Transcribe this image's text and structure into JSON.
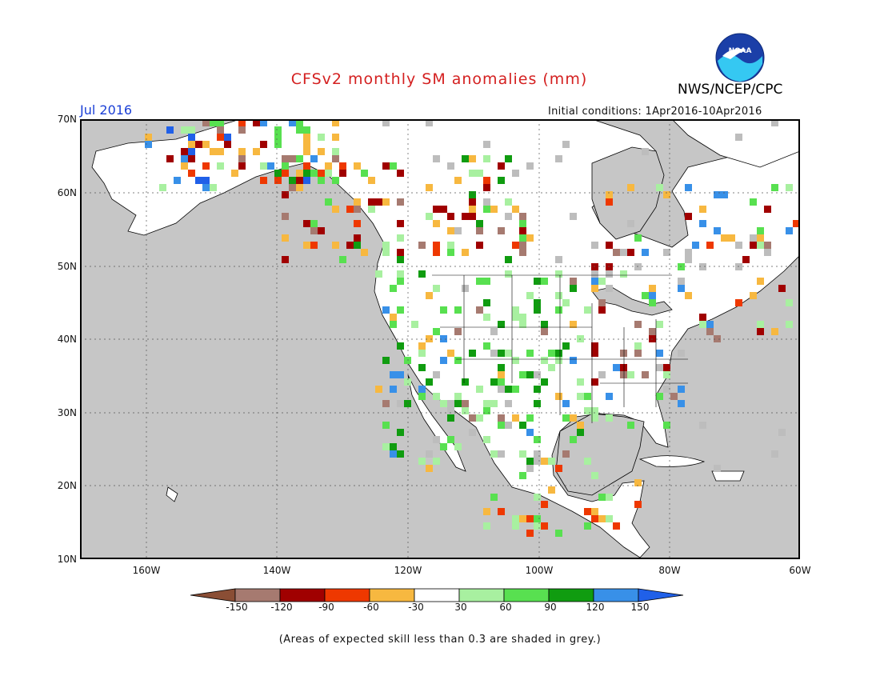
{
  "title": "CFSv2 monthly SM anomalies (mm)",
  "agency": "NWS/NCEP/CPC",
  "logo_text": "NOAA",
  "month_label": "Jul 2016",
  "initial_conditions": "Initial conditions: 1Apr2016-10Apr2016",
  "lat_labels": [
    "70N",
    "60N",
    "50N",
    "40N",
    "30N",
    "20N",
    "10N"
  ],
  "lon_labels": [
    "160W",
    "140W",
    "120W",
    "100W",
    "80W",
    "60W"
  ],
  "colorbar": {
    "labels": [
      "-150",
      "-120",
      "-90",
      "-60",
      "-30",
      "30",
      "60",
      "90",
      "120",
      "150"
    ],
    "colors": [
      "#8a4e35",
      "#a67a70",
      "#a00000",
      "#ee3800",
      "#f7b840",
      "#ffffff",
      "#a8f0a0",
      "#58e050",
      "#109c10",
      "#3890e8",
      "#2060e8"
    ]
  },
  "footnote": "(Areas of expected skill less than 0.3 are shaded in grey.)",
  "colors": {
    "ocean": "#c6c6c6",
    "land": "#ffffff",
    "title": "#d42020",
    "month": "#1a3fd6"
  }
}
